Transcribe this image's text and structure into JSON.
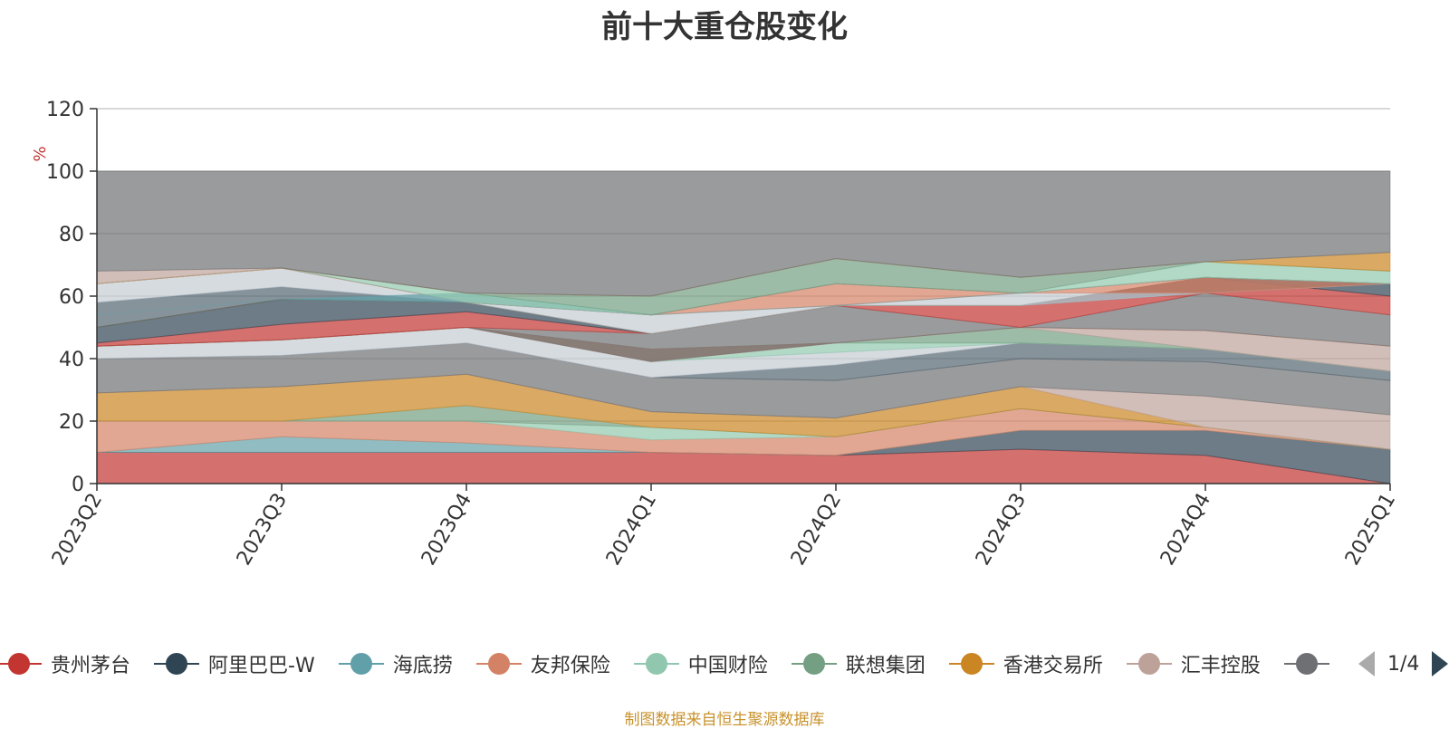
{
  "title": "前十大重仓股变化",
  "source_note": "制图数据来自恒生聚源数据库",
  "legend": {
    "items": [
      {
        "label": "贵州茅台",
        "color": "#c23531"
      },
      {
        "label": "阿里巴巴-W",
        "color": "#2f4554"
      },
      {
        "label": "海底捞",
        "color": "#61a0a8"
      },
      {
        "label": "友邦保险",
        "color": "#d48265"
      },
      {
        "label": "中国财险",
        "color": "#91c7ae"
      },
      {
        "label": "联想集团",
        "color": "#749f83"
      },
      {
        "label": "香港交易所",
        "color": "#ca8622"
      },
      {
        "label": "汇丰控股",
        "color": "#bda29a"
      },
      {
        "label": "",
        "color": "#6e7074"
      }
    ],
    "page": "1/4"
  },
  "chart_data": {
    "type": "area",
    "title": "前十大重仓股变化",
    "xlabel": "",
    "ylabel": "%",
    "x": [
      "2023Q2",
      "2023Q3",
      "2023Q4",
      "2024Q1",
      "2024Q2",
      "2024Q3",
      "2024Q4",
      "2025Q1"
    ],
    "ylim": [
      0,
      120
    ],
    "yticks": [
      0,
      20,
      40,
      60,
      80,
      100,
      120
    ],
    "grid": true,
    "stacked": true,
    "bands": [
      {
        "color": "#c23531",
        "bottom": [
          0,
          0,
          0,
          0,
          0,
          0,
          0,
          0
        ],
        "top": [
          10,
          10,
          10,
          10,
          9,
          11,
          9,
          0
        ]
      },
      {
        "color": "#2f4554",
        "bottom": [
          10,
          10,
          10,
          10,
          9,
          11,
          9,
          0
        ],
        "top": [
          10,
          10,
          10,
          10,
          9,
          17,
          17,
          11
        ]
      },
      {
        "color": "#61a0a8",
        "bottom": [
          10,
          10,
          10,
          10,
          9,
          17,
          17,
          11
        ],
        "top": [
          10,
          15,
          13,
          10,
          9,
          17,
          17,
          11
        ]
      },
      {
        "color": "#d48265",
        "bottom": [
          10,
          15,
          13,
          10,
          9,
          17,
          17,
          11
        ],
        "top": [
          20,
          20,
          20,
          14,
          15,
          24,
          18,
          11
        ]
      },
      {
        "color": "#91c7ae",
        "bottom": [
          20,
          20,
          20,
          14,
          15,
          24,
          18,
          11
        ],
        "top": [
          20,
          20,
          20,
          18,
          15,
          24,
          18,
          11
        ]
      },
      {
        "color": "#749f83",
        "bottom": [
          20,
          20,
          20,
          18,
          15,
          24,
          18,
          11
        ],
        "top": [
          20,
          20,
          25,
          18,
          15,
          24,
          18,
          11
        ]
      },
      {
        "color": "#ca8622",
        "bottom": [
          20,
          20,
          25,
          18,
          15,
          24,
          18,
          11
        ],
        "top": [
          29,
          31,
          35,
          23,
          21,
          31,
          18,
          11
        ]
      },
      {
        "color": "#bda29a",
        "bottom": [
          29,
          31,
          35,
          23,
          21,
          31,
          18,
          11
        ],
        "top": [
          29,
          31,
          35,
          23,
          21,
          31,
          28,
          22
        ]
      },
      {
        "color": "#6e7074",
        "bottom": [
          29,
          31,
          35,
          23,
          21,
          31,
          28,
          22
        ],
        "top": [
          40,
          41,
          45,
          34,
          33,
          40,
          39,
          33
        ]
      },
      {
        "color": "#546570",
        "bottom": [
          40,
          41,
          45,
          34,
          33,
          40,
          39,
          33
        ],
        "top": [
          40,
          41,
          45,
          34,
          38,
          45,
          43,
          36
        ]
      },
      {
        "color": "#c4ccd3",
        "bottom": [
          40,
          41,
          45,
          34,
          38,
          45,
          43,
          36
        ],
        "top": [
          44,
          46,
          50,
          39,
          42,
          45,
          43,
          36
        ]
      },
      {
        "color": "#91c7ae",
        "bottom": [
          44,
          46,
          50,
          39,
          42,
          45,
          43,
          36
        ],
        "top": [
          44,
          46,
          50,
          43,
          45,
          45,
          43,
          36
        ]
      },
      {
        "color": "#749f83",
        "bottom": [
          44,
          46,
          50,
          43,
          45,
          45,
          43,
          36
        ],
        "top": [
          44,
          46,
          50,
          43,
          45,
          50,
          43,
          36
        ]
      },
      {
        "color": "#bda29a",
        "bottom": [
          44,
          46,
          50,
          43,
          45,
          50,
          43,
          36
        ],
        "top": [
          44,
          46,
          50,
          43,
          45,
          50,
          49,
          44
        ]
      },
      {
        "color": "#d48265",
        "bottom": [
          44,
          46,
          50,
          43,
          45,
          50,
          49,
          44
        ],
        "top": [
          44,
          46,
          50,
          39,
          45,
          50,
          49,
          44
        ]
      },
      {
        "color": "#6e7074",
        "bottom": [
          44,
          46,
          50,
          39,
          45,
          50,
          49,
          44
        ],
        "top": [
          44,
          46,
          50,
          48,
          57,
          50,
          61,
          54
        ]
      },
      {
        "color": "#c23531",
        "bottom": [
          44,
          46,
          50,
          48,
          57,
          50,
          61,
          54
        ],
        "top": [
          45,
          51,
          55,
          48,
          57,
          57,
          66,
          60
        ]
      },
      {
        "color": "#2f4554",
        "bottom": [
          45,
          51,
          55,
          48,
          57,
          57,
          66,
          60
        ],
        "top": [
          50,
          59,
          58,
          48,
          57,
          57,
          66,
          64
        ]
      },
      {
        "color": "#ca8622",
        "bottom": [
          50,
          59,
          58,
          48,
          57,
          57,
          66,
          64
        ],
        "top": [
          50,
          59,
          58,
          48,
          57,
          57,
          66,
          64
        ]
      },
      {
        "color": "#546570",
        "bottom": [
          50,
          59,
          58,
          48,
          57,
          57,
          66,
          64
        ],
        "top": [
          58,
          63,
          58,
          48,
          57,
          57,
          61,
          64
        ]
      },
      {
        "color": "#c4ccd3",
        "bottom": [
          58,
          63,
          58,
          48,
          57,
          57,
          61,
          64
        ],
        "top": [
          64,
          69,
          58,
          54,
          57,
          61,
          61,
          64
        ]
      },
      {
        "color": "#d48265",
        "bottom": [
          64,
          69,
          58,
          54,
          57,
          61,
          61,
          64
        ],
        "top": [
          64,
          69,
          58,
          54,
          64,
          61,
          66,
          64
        ]
      },
      {
        "color": "#c23531",
        "bottom": [
          64,
          69,
          58,
          54,
          64,
          61,
          66,
          64
        ],
        "top": [
          64,
          69,
          58,
          54,
          64,
          61,
          66,
          64
        ]
      },
      {
        "color": "#61a0a8",
        "bottom": [
          54,
          59,
          58,
          54,
          57,
          61,
          66,
          64
        ],
        "top": [
          54,
          59,
          61,
          54,
          57,
          61,
          66,
          64
        ]
      },
      {
        "color": "#91c7ae",
        "bottom": [
          64,
          69,
          58,
          54,
          64,
          61,
          66,
          64
        ],
        "top": [
          64,
          69,
          61,
          54,
          64,
          61,
          71,
          68
        ]
      },
      {
        "color": "#749f83",
        "bottom": [
          64,
          69,
          61,
          54,
          64,
          61,
          71,
          68
        ],
        "top": [
          64,
          69,
          61,
          60,
          72,
          66,
          71,
          68
        ]
      },
      {
        "color": "#ca8622",
        "bottom": [
          64,
          69,
          61,
          60,
          72,
          66,
          71,
          68
        ],
        "top": [
          64,
          69,
          61,
          60,
          72,
          66,
          71,
          74
        ]
      },
      {
        "color": "#bda29a",
        "bottom": [
          64,
          69,
          61,
          60,
          72,
          66,
          71,
          74
        ],
        "top": [
          68,
          69,
          61,
          60,
          72,
          66,
          71,
          74
        ]
      },
      {
        "color": "#6e7074",
        "bottom": [
          68,
          69,
          61,
          60,
          72,
          66,
          71,
          74
        ],
        "top": [
          100,
          100,
          100,
          100,
          100,
          100,
          100,
          100
        ]
      }
    ]
  }
}
